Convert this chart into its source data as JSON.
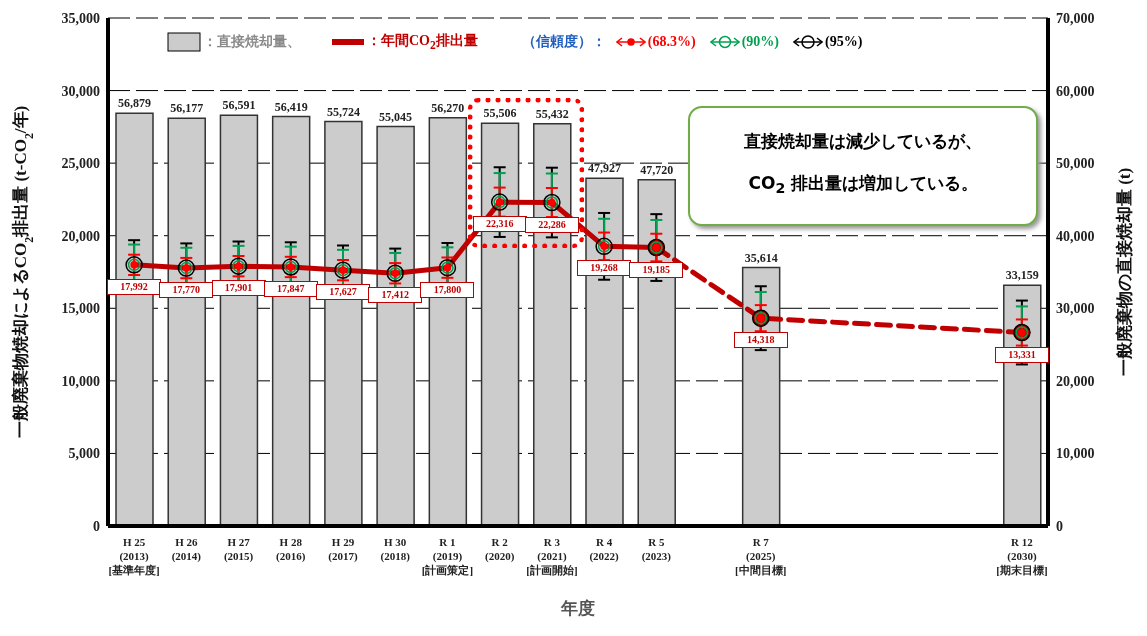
{
  "chart_data": {
    "type": "bar",
    "xlabel": "年度",
    "ylabel": "一般廃棄物焼却によるCO$_{2}$排出量 (t-CO$_{2}$/年)",
    "y2label": "一般廃棄物の直接焼却量 (t)",
    "legend_title": "（信頼度）：",
    "categories": [
      "H 25\n(2013)\n[基準年度]",
      "H 26\n(2014)",
      "H 27\n(2015)",
      "H 28\n(2016)",
      "H 29\n(2017)",
      "H 30\n(2018)",
      "R 1\n(2019)\n[計画策定]",
      "R 2\n(2020)",
      "R 3\n(2021)\n[計画開始]",
      "R 4\n(2022)",
      "R 5\n(2023)",
      null,
      "R 7\n(2025)\n[中間目標]",
      null,
      null,
      null,
      null,
      "R 12\n(2030)\n[期末目標]"
    ],
    "series": [
      {
        "name": "：直接焼却量、",
        "color": "#cccccc",
        "axis": "y2",
        "values": [
          56879,
          56177,
          56591,
          56419,
          55724,
          55045,
          56270,
          55506,
          55432,
          47927,
          47720,
          null,
          35614,
          null,
          null,
          null,
          null,
          33159
        ],
        "value_labels": [
          "56,879",
          "56,177",
          "56,591",
          "56,419",
          "55,724",
          "55,045",
          "56,270",
          "55,506",
          "55,432",
          "47,927",
          "47,720",
          null,
          "35,614",
          null,
          null,
          null,
          null,
          "33,159"
        ]
      },
      {
        "type": "line",
        "name": "：年間CO$_{2}$排出量",
        "color": "#c00000",
        "line_style": "solid",
        "marker": "none",
        "values": [
          17992,
          17770,
          17901,
          17847,
          17627,
          17412,
          17800,
          22316,
          22286,
          19268,
          19185,
          null,
          null,
          null,
          null,
          null,
          null,
          null
        ],
        "value_labels": [
          "17,992",
          "17,770",
          "17,901",
          "17,847",
          "17,627",
          "17,412",
          "17,800",
          "22,316",
          "22,286",
          "19,268",
          "19,185",
          null,
          null,
          null,
          null,
          null,
          null,
          null
        ]
      },
      {
        "type": "line",
        "color": "#c00000",
        "line_style": "dashed",
        "marker": "circle",
        "values": [
          null,
          null,
          null,
          null,
          null,
          null,
          null,
          null,
          null,
          null,
          19185,
          null,
          14318,
          null,
          null,
          null,
          null,
          13331
        ],
        "value_labels": [
          null,
          null,
          null,
          null,
          null,
          null,
          null,
          null,
          null,
          null,
          null,
          null,
          "14,318",
          null,
          null,
          null,
          null,
          "13,331"
        ]
      },
      {
        "type": "scatter",
        "name": "(68.3%)",
        "color": "#ff0000",
        "marker": "circle",
        "values": [
          17992,
          17770,
          17901,
          17847,
          17627,
          17412,
          17800,
          22316,
          22286,
          19268,
          19185,
          null,
          14318,
          null,
          null,
          null,
          null,
          13331
        ],
        "errors": [
          700,
          700,
          700,
          700,
          700,
          700,
          700,
          1000,
          1000,
          950,
          950,
          null,
          900,
          null,
          null,
          null,
          null,
          900
        ]
      },
      {
        "type": "scatter",
        "name": "(90%)",
        "color": "#00a050",
        "marker": "circle",
        "values": [
          17992,
          17770,
          17901,
          17847,
          17627,
          17412,
          17800,
          22316,
          22286,
          19268,
          19185,
          null,
          14318,
          null,
          null,
          null,
          null,
          13331
        ],
        "errors": [
          1400,
          1400,
          1400,
          1400,
          1400,
          1400,
          1400,
          2000,
          2000,
          1900,
          1900,
          null,
          1800,
          null,
          null,
          null,
          null,
          1800
        ]
      },
      {
        "type": "scatter",
        "name": "(95%)",
        "color": "#000000",
        "marker": "circle",
        "values": [
          17992,
          17770,
          17901,
          17847,
          17627,
          17412,
          17800,
          22316,
          22286,
          19268,
          19185,
          null,
          14318,
          null,
          null,
          null,
          null,
          13331
        ],
        "errors": [
          1700,
          1700,
          1700,
          1700,
          1700,
          1700,
          1700,
          2400,
          2400,
          2300,
          2300,
          null,
          2200,
          null,
          null,
          null,
          null,
          2200
        ]
      }
    ],
    "ylim": [
      0,
      35000
    ],
    "yticks": [
      0,
      {
        "value": 5000,
        "label": "5,000"
      },
      {
        "value": 10000,
        "label": "10,000"
      },
      {
        "value": 15000,
        "label": "15,000"
      },
      {
        "value": 20000,
        "label": "20,000"
      },
      {
        "value": 25000,
        "label": "25,000"
      },
      {
        "value": 30000,
        "label": "30,000"
      },
      {
        "value": 35000,
        "label": "35,000"
      }
    ],
    "y2lim": [
      0,
      70000
    ],
    "y2ticks": [
      0,
      {
        "value": 10000,
        "label": "10,000"
      },
      {
        "value": 20000,
        "label": "20,000"
      },
      {
        "value": 30000,
        "label": "30,000"
      },
      {
        "value": 40000,
        "label": "40,000"
      },
      {
        "value": 50000,
        "label": "50,000"
      },
      {
        "value": 60000,
        "label": "60,000"
      },
      {
        "value": 70000,
        "label": "70,000"
      }
    ],
    "grid": "y",
    "legend": "top",
    "annotations": [
      "直接焼却量は減少しているが、\nCO$_{2}$ 排出量は増加している。"
    ]
  }
}
